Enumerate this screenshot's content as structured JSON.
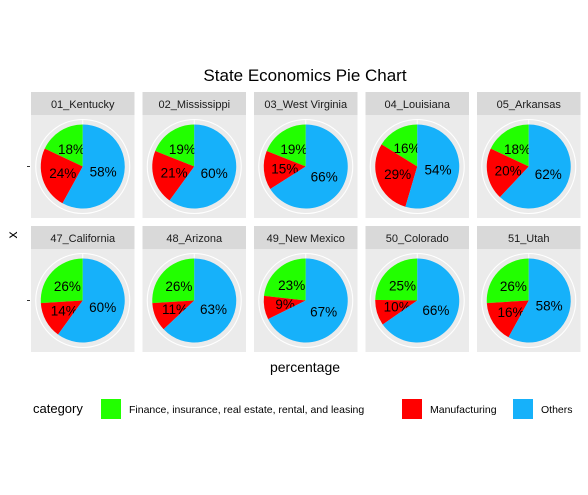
{
  "chart_data": {
    "type": "pie",
    "title": "State Economics Pie Chart",
    "xlabel": "percentage",
    "ylabel": "x",
    "legend": {
      "title": "category",
      "position": "bottom",
      "entries": [
        {
          "name": "Finance, insurance, real estate, rental, and leasing",
          "color": "#22ff00"
        },
        {
          "name": "Manufacturing",
          "color": "#ff0000"
        },
        {
          "name": "Others",
          "color": "#16b1fa"
        }
      ]
    },
    "facets": [
      {
        "state": "01_Kentucky",
        "values": [
          18,
          24,
          58
        ],
        "labels": [
          "18%",
          "24%",
          "58%"
        ]
      },
      {
        "state": "02_Mississippi",
        "values": [
          19,
          21,
          60
        ],
        "labels": [
          "19%",
          "21%",
          "60%"
        ]
      },
      {
        "state": "03_West Virginia",
        "values": [
          19,
          15,
          66
        ],
        "labels": [
          "19%",
          "15%",
          "66%"
        ]
      },
      {
        "state": "04_Louisiana",
        "values": [
          16,
          29,
          54
        ],
        "labels": [
          "16%",
          "29%",
          "54%"
        ]
      },
      {
        "state": "05_Arkansas",
        "values": [
          18,
          20,
          62
        ],
        "labels": [
          "18%",
          "20%",
          "62%"
        ]
      },
      {
        "state": "47_California",
        "values": [
          26,
          14,
          60
        ],
        "labels": [
          "26%",
          "14%",
          "60%"
        ]
      },
      {
        "state": "48_Arizona",
        "values": [
          26,
          11,
          63
        ],
        "labels": [
          "26%",
          "11%",
          "63%"
        ]
      },
      {
        "state": "49_New Mexico",
        "values": [
          23,
          9,
          67
        ],
        "labels": [
          "23%",
          "9%",
          "67%"
        ]
      },
      {
        "state": "50_Colorado",
        "values": [
          25,
          10,
          66
        ],
        "labels": [
          "25%",
          "10%",
          "66%"
        ]
      },
      {
        "state": "51_Utah",
        "values": [
          26,
          16,
          58
        ],
        "labels": [
          "26%",
          "16%",
          "58%"
        ]
      }
    ]
  }
}
